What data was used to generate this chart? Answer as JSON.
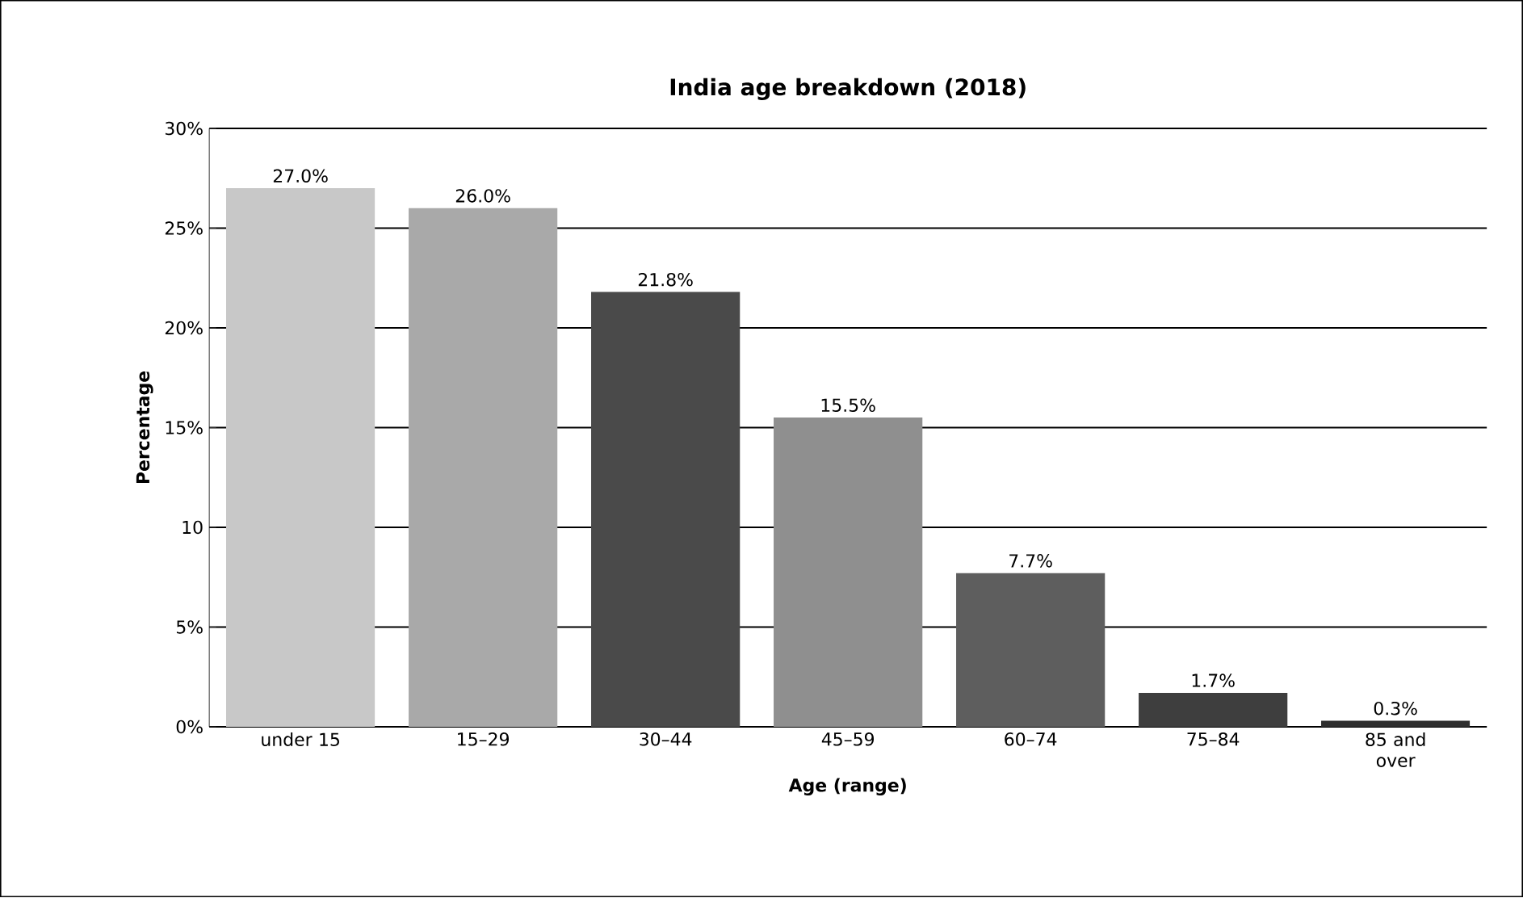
{
  "chart_data": {
    "type": "bar",
    "title": "India age breakdown (2018)",
    "xlabel": "Age (range)",
    "ylabel": "Percentage",
    "categories": [
      "under 15",
      "15–29",
      "30–44",
      "45–59",
      "60–74",
      "75–84",
      "85 and over"
    ],
    "values": [
      27.0,
      26.0,
      21.8,
      15.5,
      7.7,
      1.7,
      0.3
    ],
    "value_labels": [
      "27.0%",
      "26.0%",
      "21.8%",
      "15.5%",
      "7.7%",
      "1.7%",
      "0.3%"
    ],
    "colors": [
      "#c8c8c8",
      "#a9a9a9",
      "#4a4a4a",
      "#8f8f8f",
      "#5e5e5e",
      "#3e3e3e",
      "#2e2e2e"
    ],
    "ylim": [
      0,
      30
    ],
    "yticks": [
      {
        "value": 0,
        "label": "0%"
      },
      {
        "value": 5,
        "label": "5%"
      },
      {
        "value": 10,
        "label": "10"
      },
      {
        "value": 15,
        "label": "15%"
      },
      {
        "value": 20,
        "label": "20%"
      },
      {
        "value": 25,
        "label": "25%"
      },
      {
        "value": 30,
        "label": "30%"
      }
    ],
    "grid": "y"
  }
}
